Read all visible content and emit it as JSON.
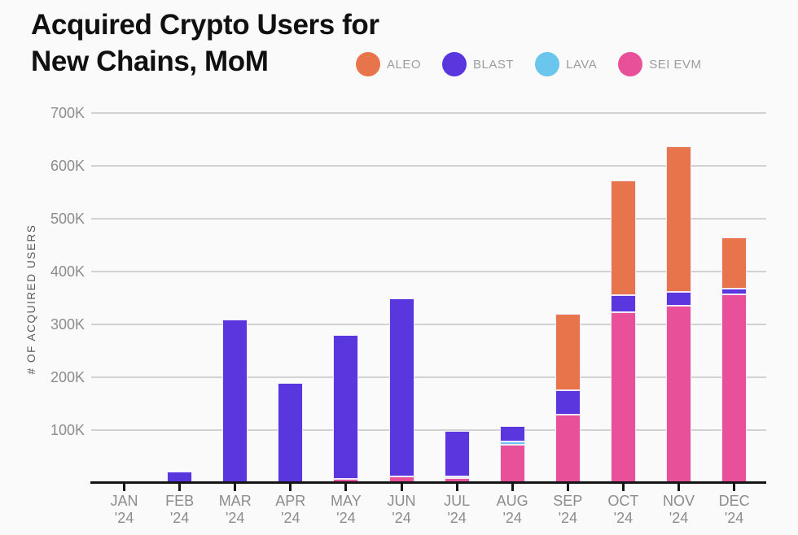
{
  "title": {
    "line1": "Acquired Crypto Users for",
    "line2": "New Chains, MoM"
  },
  "chart_data": {
    "type": "bar",
    "stacked": true,
    "title": "Acquired Crypto Users for New Chains, MoM",
    "ylabel": "# OF ACQUIRED USERS",
    "unit": "thousands of acquired users",
    "ylim": [
      0,
      700
    ],
    "grid": true,
    "legend_position": "top",
    "y_ticks": [
      "100K",
      "200K",
      "300K",
      "400K",
      "500K",
      "600K",
      "700K"
    ],
    "categories": [
      "JAN '24",
      "FEB '24",
      "MAR '24",
      "APR '24",
      "MAY '24",
      "JUN '24",
      "JUL '24",
      "AUG '24",
      "SEP '24",
      "OCT '24",
      "NOV '24",
      "DEC '24"
    ],
    "series": [
      {
        "name": "ALEO",
        "color": "#E8744B",
        "values_k": [
          0,
          0,
          0,
          0,
          0,
          0,
          0,
          0,
          145,
          216,
          276,
          97
        ]
      },
      {
        "name": "BLAST",
        "color": "#5A36DF",
        "values_k": [
          0,
          22,
          310,
          190,
          272,
          337,
          85,
          30,
          45,
          33,
          26,
          11
        ]
      },
      {
        "name": "LAVA",
        "color": "#6AC6EC",
        "values_k": [
          0,
          0,
          0,
          0,
          0,
          0,
          4,
          6,
          0,
          0,
          0,
          0
        ]
      },
      {
        "name": "SEI EVM",
        "color": "#E8519A",
        "values_k": [
          0,
          0,
          0,
          0,
          8,
          13,
          9,
          72,
          130,
          323,
          335,
          357
        ]
      }
    ],
    "stack_order_bottom_to_top": [
      "SEI EVM",
      "LAVA",
      "BLAST",
      "ALEO"
    ],
    "totals_k": [
      0,
      22,
      310,
      190,
      280,
      350,
      98,
      108,
      320,
      572,
      637,
      465
    ]
  },
  "colors": {
    "background": "#FAFAFA",
    "gridline": "#D2D2D2",
    "axis_line": "#161616",
    "tick_label": "#8C8C8C",
    "title_text": "#101010",
    "legend_label": "#9C9C9C",
    "segment_stroke": "#EFE9F9"
  }
}
